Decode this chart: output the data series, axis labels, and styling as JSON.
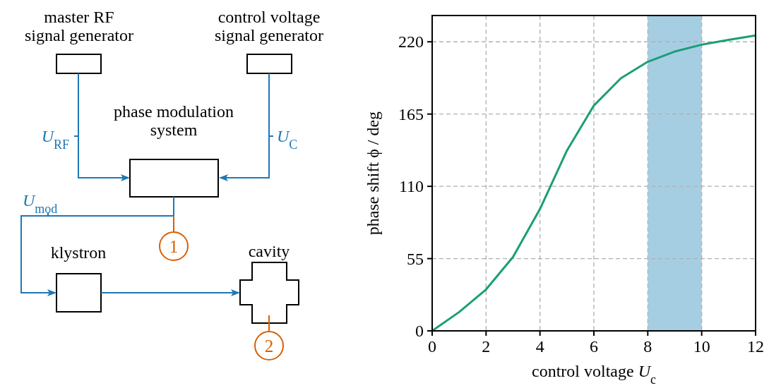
{
  "chart_data": [
    {
      "type": "other",
      "annotations": [
        "master RF\nsignal generator",
        "control voltage\nsignal generator",
        "phase modulation\nsystem",
        "U$_{RF}$",
        "U$_{C}$",
        "U$_{mod}$",
        "klystron",
        "cavity",
        "1",
        "2"
      ]
    },
    {
      "type": "line",
      "xlabel": "control voltage U$_{c}$",
      "ylabel": "phase shift ϕ / deg",
      "x": [
        0,
        1,
        2,
        3,
        4,
        5,
        6,
        7,
        8,
        9,
        10,
        11,
        12
      ],
      "series": [
        {
          "color": "#1b9e77",
          "values": [
            0,
            14.3,
            31.5,
            56.2,
            92.7,
            137.2,
            171.5,
            192.2,
            204.8,
            212.6,
            217.8,
            221.5,
            224.8
          ]
        }
      ],
      "xlim": [
        0,
        12
      ],
      "xticks": [
        0,
        2,
        4,
        6,
        8,
        10,
        12
      ],
      "ylim": [
        0,
        240
      ],
      "yticks": [
        0,
        55,
        110,
        165,
        220
      ],
      "grid": true,
      "line_style": "solid",
      "marker": "none",
      "bands": [
        {
          "axis": "x",
          "from": 8,
          "to": 10,
          "color": "#a6cee3"
        }
      ]
    }
  ]
}
